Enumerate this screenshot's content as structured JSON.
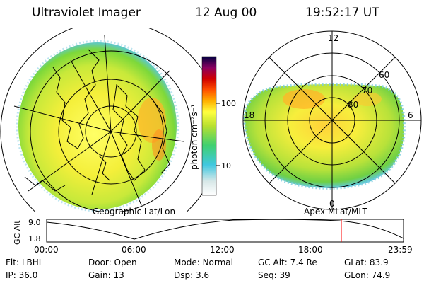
{
  "header": {
    "instrument": "Ultraviolet Imager",
    "date": "12 Aug 00",
    "time": "19:52:17 UT"
  },
  "colorbar": {
    "unit_label": "photon cm⁻²s⁻¹",
    "ticks": [
      "100",
      "10"
    ]
  },
  "left_panel": {
    "caption": "Geographic Lat/Lon"
  },
  "right_panel": {
    "caption": "Apex MLat/MLT",
    "mlt_labels": {
      "top": "12",
      "left": "18",
      "right": "6",
      "bottom": "0"
    },
    "lat_labels": [
      "60",
      "70",
      "80"
    ]
  },
  "altitude_plot": {
    "ylabel": "GC Alt",
    "y_ticks": [
      "9.0",
      "1.8"
    ],
    "x_ticks": [
      "00:00",
      "06:00",
      "12:00",
      "18:00",
      "23:59"
    ],
    "current_marker_color": "#ff0000"
  },
  "info": {
    "row1": [
      {
        "label": "Flt:",
        "value": "LBHL"
      },
      {
        "label": "Door:",
        "value": "Open"
      },
      {
        "label": "Mode:",
        "value": "Normal"
      },
      {
        "label": "GC Alt:",
        "value": "7.4 Re"
      },
      {
        "label": "GLat:",
        "value": "83.9"
      }
    ],
    "row2": [
      {
        "label": "IP:",
        "value": "36.0"
      },
      {
        "label": "Gain:",
        "value": "13"
      },
      {
        "label": "Dsp:",
        "value": "3.6"
      },
      {
        "label": "Seq:",
        "value": "39"
      },
      {
        "label": "GLon:",
        "value": "74.9"
      }
    ]
  }
}
